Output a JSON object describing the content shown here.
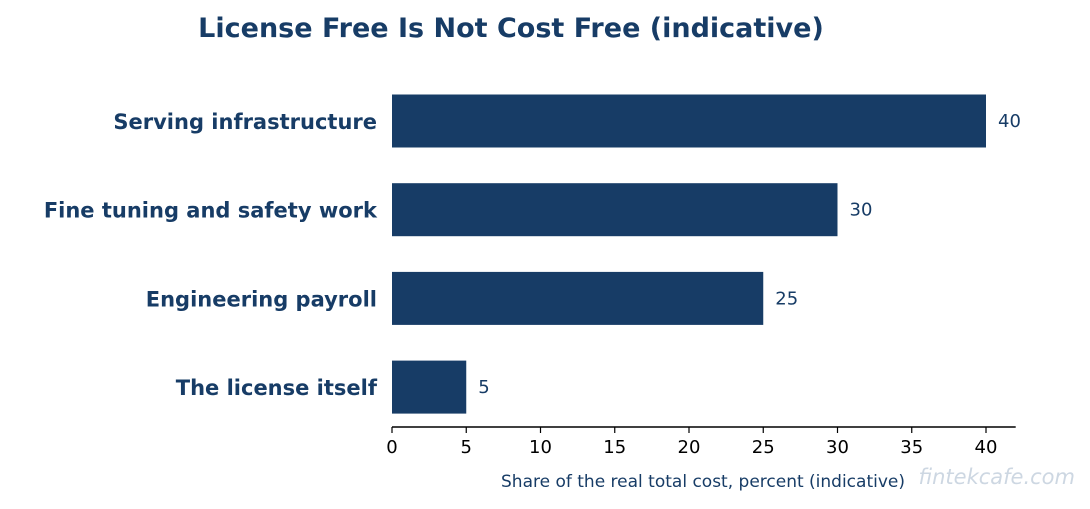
{
  "colors": {
    "bar": "#173c66",
    "text": "#173c66",
    "axis": "#000000",
    "watermark": "#cdd7e2"
  },
  "watermark": "fintekcafe.com",
  "chart_data": {
    "type": "bar",
    "orientation": "horizontal",
    "title": "License Free Is Not Cost Free (indicative)",
    "xlabel": "Share of the real total cost, percent (indicative)",
    "ylabel": "",
    "categories": [
      "Serving infrastructure",
      "Fine tuning and safety work",
      "Engineering payroll",
      "The license itself"
    ],
    "values": [
      40,
      30,
      25,
      5
    ],
    "data_labels": [
      "40",
      "30",
      "25",
      "5"
    ],
    "xlim": [
      0,
      42
    ],
    "xticks": [
      0,
      5,
      10,
      15,
      20,
      25,
      30,
      35,
      40
    ],
    "grid": false,
    "legend": "none"
  }
}
